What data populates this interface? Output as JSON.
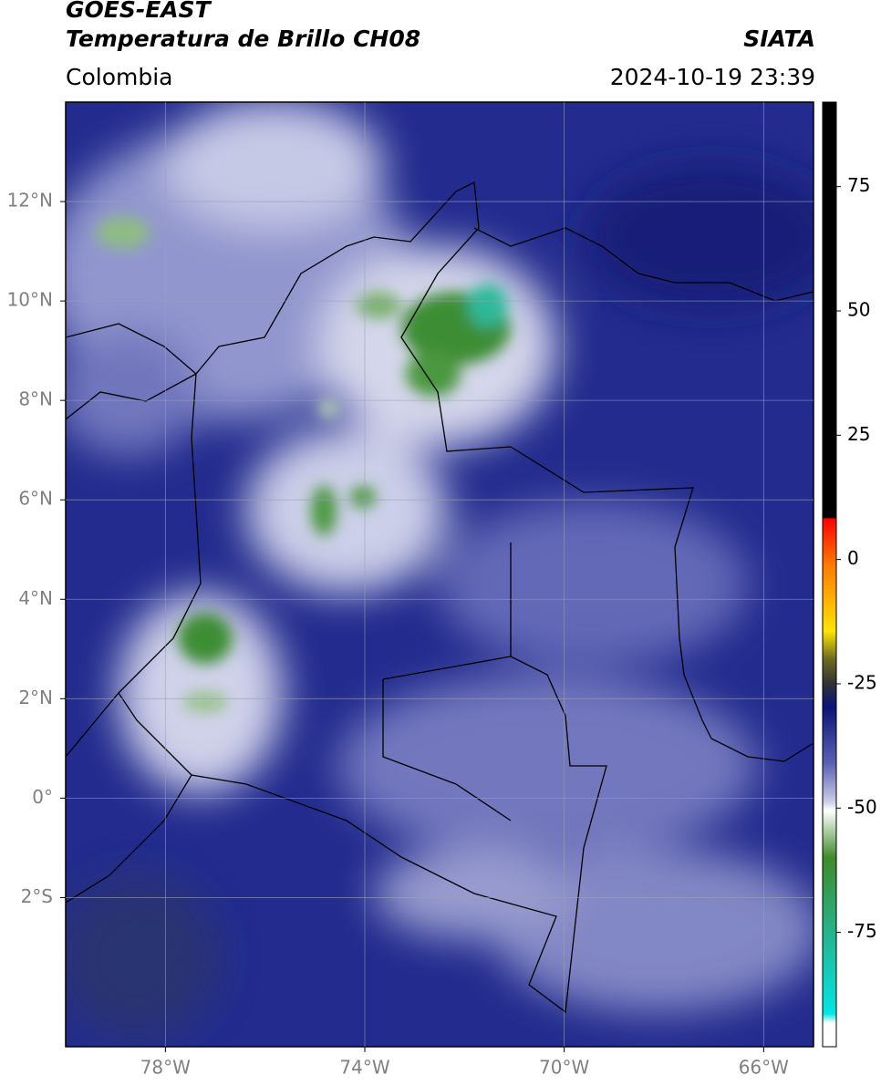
{
  "header": {
    "satellite": "GOES-EAST",
    "product": "Temperatura de Brillo CH08",
    "source": "SIATA",
    "region": "Colombia",
    "datetime": "2024-10-19 23:39"
  },
  "map": {
    "xlim": [
      -80,
      -65
    ],
    "ylim": [
      -5,
      14
    ],
    "xticks": [
      {
        "value": -78,
        "label": "78°W"
      },
      {
        "value": -74,
        "label": "74°W"
      },
      {
        "value": -70,
        "label": "70°W"
      },
      {
        "value": -66,
        "label": "66°W"
      }
    ],
    "yticks": [
      {
        "value": 12,
        "label": "12°N"
      },
      {
        "value": 10,
        "label": "10°N"
      },
      {
        "value": 8,
        "label": "8°N"
      },
      {
        "value": 6,
        "label": "6°N"
      },
      {
        "value": 4,
        "label": "4°N"
      },
      {
        "value": 2,
        "label": "2°N"
      },
      {
        "value": 0,
        "label": "0°"
      },
      {
        "value": -2,
        "label": "2°S"
      }
    ],
    "grid": true
  },
  "colorbar": {
    "lim": [
      -98,
      92
    ],
    "ticks": [
      75,
      50,
      25,
      0,
      -25,
      -50,
      -75
    ]
  }
}
